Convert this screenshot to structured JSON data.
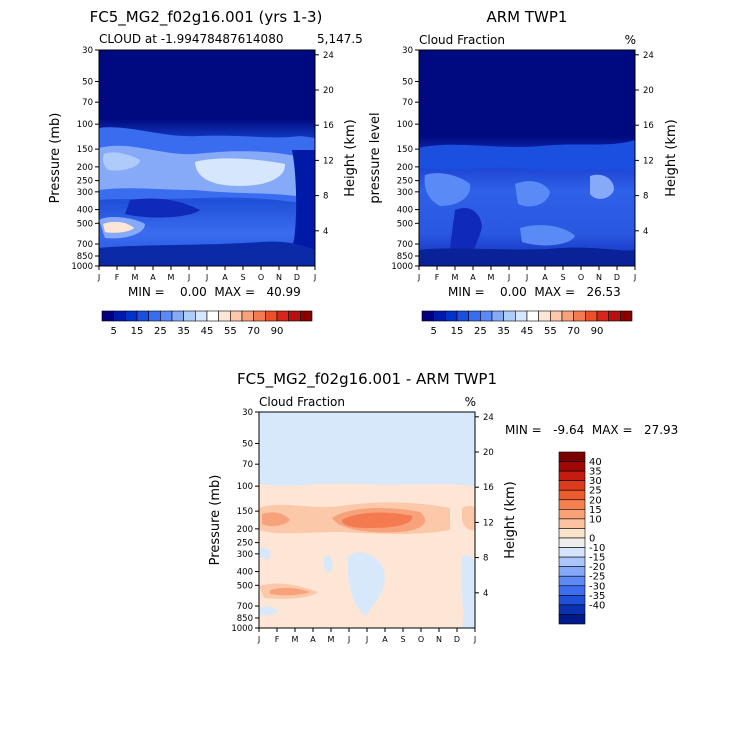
{
  "colors": {
    "abs_scale": [
      "#000080",
      "#001aa8",
      "#0033cc",
      "#1a4fe0",
      "#3a6cf0",
      "#5a8af5",
      "#86aaf8",
      "#aecbfa",
      "#d6e6fc",
      "#ffffff",
      "#fde6d6",
      "#fbc8aa",
      "#f8a27c",
      "#f47a50",
      "#ec4f2a",
      "#d8261a",
      "#b81010",
      "#8a0000"
    ],
    "diff_scale": [
      "#001a8c",
      "#0a32b0",
      "#1f50d8",
      "#3e6ef0",
      "#5e8af5",
      "#85a8f8",
      "#abc6fa",
      "#d3e4fc",
      "#eeeeee",
      "#fde2cc",
      "#fbc3a0",
      "#f8a276",
      "#f4814f",
      "#ec5b30",
      "#dc3a1c",
      "#c41c10",
      "#a00806",
      "#7a0000"
    ]
  },
  "chart_data": [
    {
      "type": "heatmap",
      "title": "FC5_MG2_f02g16.001 (yrs 1-3)",
      "subtitle": "CLOUD at -1.99478487614080",
      "subtitle_right": "5,147.5",
      "ylabel": "Pressure (mb)",
      "ylabel_right": "Height (km)",
      "x_ticks": [
        "J",
        "F",
        "M",
        "A",
        "M",
        "J",
        "J",
        "A",
        "S",
        "O",
        "N",
        "D",
        "J"
      ],
      "y_ticks": [
        "30",
        "50",
        "70",
        "100",
        "150",
        "200",
        "250",
        "300",
        "400",
        "500",
        "700",
        "850",
        "1000"
      ],
      "y_ticks_right": [
        "24",
        "20",
        "16",
        "12",
        "8",
        "4"
      ],
      "stats_text": "MIN =    0.00  MAX =   40.99",
      "colorbar_labels": [
        "5",
        "15",
        "25",
        "35",
        "45",
        "55",
        "70",
        "90"
      ],
      "levels": [
        0,
        5,
        10,
        15,
        20,
        25,
        30,
        35,
        40,
        45,
        50,
        55,
        60,
        65,
        70,
        80,
        90
      ]
    },
    {
      "type": "heatmap",
      "title": "ARM TWP1",
      "subtitle": "Cloud Fraction",
      "units": "%",
      "ylabel": "pressure level",
      "ylabel_right": "Height (km)",
      "x_ticks": [
        "J",
        "F",
        "M",
        "A",
        "M",
        "J",
        "J",
        "A",
        "S",
        "O",
        "N",
        "D",
        "J"
      ],
      "y_ticks": [
        "30",
        "50",
        "70",
        "100",
        "150",
        "200",
        "250",
        "300",
        "400",
        "500",
        "700",
        "850",
        "1000"
      ],
      "y_ticks_right": [
        "24",
        "20",
        "16",
        "12",
        "8",
        "4"
      ],
      "stats_text": "MIN =    0.00  MAX =   26.53",
      "colorbar_labels": [
        "5",
        "15",
        "25",
        "35",
        "45",
        "55",
        "70",
        "90"
      ],
      "levels": [
        0,
        5,
        10,
        15,
        20,
        25,
        30,
        35,
        40,
        45,
        50,
        55,
        60,
        65,
        70,
        80,
        90
      ]
    },
    {
      "type": "heatmap",
      "title": "FC5_MG2_f02g16.001 - ARM TWP1",
      "subtitle": "Cloud Fraction",
      "units": "%",
      "ylabel": "Pressure (mb)",
      "ylabel_right": "Height (km)",
      "x_ticks": [
        "J",
        "F",
        "M",
        "A",
        "M",
        "J",
        "J",
        "A",
        "S",
        "O",
        "N",
        "D",
        "J"
      ],
      "y_ticks": [
        "30",
        "50",
        "70",
        "100",
        "150",
        "200",
        "250",
        "300",
        "400",
        "500",
        "700",
        "850",
        "1000"
      ],
      "y_ticks_right": [
        "24",
        "20",
        "16",
        "12",
        "8",
        "4"
      ],
      "stats_text": "MIN =   -9.64  MAX =   27.93",
      "colorbar_labels": [
        "40",
        "35",
        "30",
        "25",
        "20",
        "15",
        "10",
        "0",
        "-10",
        "-15",
        "-20",
        "-25",
        "-30",
        "-35",
        "-40"
      ],
      "levels": [
        -40,
        -35,
        -30,
        -25,
        -20,
        -15,
        -10,
        -5,
        0,
        5,
        10,
        15,
        20,
        25,
        30,
        35,
        40
      ]
    }
  ]
}
